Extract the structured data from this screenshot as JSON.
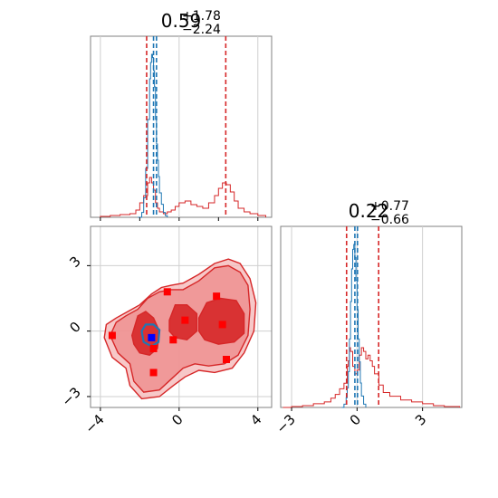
{
  "chart_data": [
    {
      "panel": "hist-param-1",
      "type": "area",
      "title": {
        "value": "0.59",
        "upper": "+1.78",
        "lower": "−2.24"
      },
      "xlim": [
        -4.5,
        4.7
      ],
      "grid": true,
      "series": [
        {
          "color": "#d62728",
          "x": [
            -4.0,
            -3.5,
            -3.0,
            -2.5,
            -2.2,
            -2.0,
            -1.8,
            -1.6,
            -1.5,
            -1.4,
            -1.3,
            -1.2,
            -1.1,
            -1.0,
            -0.8,
            -0.6,
            -0.4,
            -0.2,
            0.0,
            0.3,
            0.6,
            0.9,
            1.2,
            1.5,
            1.8,
            2.0,
            2.2,
            2.4,
            2.6,
            2.8,
            3.0,
            3.3,
            3.6,
            4.0,
            4.4
          ],
          "y": [
            0.005,
            0.01,
            0.015,
            0.02,
            0.04,
            0.08,
            0.12,
            0.19,
            0.22,
            0.19,
            0.15,
            0.08,
            0.05,
            0.03,
            0.02,
            0.03,
            0.04,
            0.06,
            0.08,
            0.09,
            0.07,
            0.06,
            0.05,
            0.08,
            0.12,
            0.16,
            0.19,
            0.18,
            0.14,
            0.09,
            0.05,
            0.03,
            0.02,
            0.01,
            0.0
          ]
        },
        {
          "color": "#1f77b4",
          "x": [
            -2.1,
            -1.9,
            -1.8,
            -1.7,
            -1.6,
            -1.5,
            -1.45,
            -1.4,
            -1.35,
            -1.3,
            -1.25,
            -1.2,
            -1.15,
            -1.1,
            -1.05,
            -1.0,
            -0.9,
            -0.8,
            -0.7,
            -0.6
          ],
          "y": [
            0.0,
            0.03,
            0.12,
            0.3,
            0.6,
            0.85,
            0.95,
            1.0,
            0.98,
            0.9,
            0.8,
            0.6,
            0.45,
            0.35,
            0.25,
            0.15,
            0.08,
            0.03,
            0.01,
            0.0
          ]
        }
      ],
      "reference_lines": [
        {
          "x": -1.65,
          "color": "#d62728"
        },
        {
          "x": 2.37,
          "color": "#d62728"
        },
        {
          "x": -1.3,
          "color": "#1f77b4"
        },
        {
          "x": -1.15,
          "color": "#1f77b4"
        }
      ]
    },
    {
      "panel": "hist-param-2",
      "type": "area",
      "title": {
        "value": "0.22",
        "upper": "+0.77",
        "lower": "−0.66"
      },
      "xlim": [
        -3.5,
        4.8
      ],
      "x_ticks": [
        "−3",
        "0",
        "3"
      ],
      "x_tick_values": [
        -3,
        0,
        3
      ],
      "grid": true,
      "series": [
        {
          "color": "#d62728",
          "x": [
            -3.4,
            -3.0,
            -2.5,
            -2.0,
            -1.5,
            -1.2,
            -1.0,
            -0.8,
            -0.6,
            -0.45,
            -0.4,
            -0.35,
            -0.3,
            -0.2,
            -0.1,
            0.0,
            0.1,
            0.2,
            0.3,
            0.4,
            0.5,
            0.6,
            0.7,
            0.8,
            1.0,
            1.2,
            1.5,
            2.0,
            2.5,
            3.0,
            3.5,
            4.0,
            4.7
          ],
          "y": [
            0.0,
            0.005,
            0.01,
            0.02,
            0.03,
            0.05,
            0.07,
            0.1,
            0.13,
            0.22,
            0.25,
            0.32,
            0.3,
            0.22,
            0.18,
            0.2,
            0.28,
            0.32,
            0.3,
            0.26,
            0.28,
            0.25,
            0.22,
            0.18,
            0.12,
            0.08,
            0.06,
            0.04,
            0.03,
            0.02,
            0.01,
            0.005,
            0.0
          ]
        },
        {
          "color": "#1f77b4",
          "x": [
            -0.7,
            -0.6,
            -0.5,
            -0.45,
            -0.4,
            -0.35,
            -0.3,
            -0.25,
            -0.2,
            -0.15,
            -0.1,
            -0.05,
            0.0,
            0.05,
            0.1,
            0.15,
            0.2,
            0.3,
            0.4
          ],
          "y": [
            0.0,
            0.02,
            0.06,
            0.12,
            0.22,
            0.42,
            0.65,
            0.85,
            0.97,
            1.0,
            0.92,
            0.78,
            0.6,
            0.42,
            0.28,
            0.15,
            0.07,
            0.02,
            0.0
          ]
        }
      ],
      "reference_lines": [
        {
          "x": -0.48,
          "color": "#d62728"
        },
        {
          "x": 0.99,
          "color": "#d62728"
        },
        {
          "x": -0.1,
          "color": "#1f77b4"
        },
        {
          "x": 0.02,
          "color": "#1f77b4"
        }
      ]
    },
    {
      "panel": "joint-contour",
      "type": "scatter",
      "xlim": [
        -4.5,
        4.7
      ],
      "ylim": [
        -3.5,
        4.8
      ],
      "x_ticks": [
        "−4",
        "0",
        "4"
      ],
      "x_tick_values": [
        -4,
        0,
        4
      ],
      "y_ticks": [
        "−3",
        "0",
        "3"
      ],
      "y_tick_values": [
        -3,
        0,
        3
      ],
      "grid": true,
      "contours": [
        {
          "color": "#f4b6b6",
          "points": [
            [
              -3.8,
              -0.3
            ],
            [
              -3.7,
              0.3
            ],
            [
              -3.2,
              0.6
            ],
            [
              -2.6,
              0.9
            ],
            [
              -2.0,
              1.2
            ],
            [
              -1.4,
              1.7
            ],
            [
              -0.9,
              2.0
            ],
            [
              -0.4,
              2.1
            ],
            [
              0.2,
              2.2
            ],
            [
              1.0,
              2.6
            ],
            [
              1.8,
              3.1
            ],
            [
              2.5,
              3.3
            ],
            [
              3.1,
              3.1
            ],
            [
              3.6,
              2.4
            ],
            [
              3.9,
              1.3
            ],
            [
              3.8,
              0.0
            ],
            [
              3.3,
              -1.0
            ],
            [
              2.7,
              -1.7
            ],
            [
              1.8,
              -1.9
            ],
            [
              1.0,
              -1.8
            ],
            [
              0.3,
              -2.1
            ],
            [
              -0.3,
              -2.5
            ],
            [
              -1.0,
              -3.0
            ],
            [
              -1.9,
              -3.1
            ],
            [
              -2.5,
              -2.5
            ],
            [
              -2.7,
              -1.7
            ],
            [
              -3.4,
              -1.2
            ]
          ]
        },
        {
          "color": "#ee8a8a",
          "points": [
            [
              -3.5,
              -0.2
            ],
            [
              -3.2,
              0.4
            ],
            [
              -2.7,
              0.7
            ],
            [
              -2.1,
              1.0
            ],
            [
              -1.6,
              1.5
            ],
            [
              -1.0,
              1.8
            ],
            [
              -0.4,
              1.9
            ],
            [
              0.2,
              1.9
            ],
            [
              1.0,
              2.3
            ],
            [
              1.8,
              2.9
            ],
            [
              2.5,
              3.0
            ],
            [
              3.1,
              2.7
            ],
            [
              3.5,
              2.1
            ],
            [
              3.6,
              1.0
            ],
            [
              3.5,
              -0.2
            ],
            [
              3.0,
              -1.1
            ],
            [
              2.3,
              -1.5
            ],
            [
              1.5,
              -1.6
            ],
            [
              0.8,
              -1.5
            ],
            [
              0.2,
              -1.7
            ],
            [
              -0.4,
              -2.2
            ],
            [
              -1.0,
              -2.7
            ],
            [
              -1.8,
              -2.8
            ],
            [
              -2.3,
              -2.3
            ],
            [
              -2.5,
              -1.5
            ],
            [
              -3.1,
              -1.0
            ]
          ]
        },
        {
          "color": "#d62728",
          "points": [
            [
              -2.4,
              -0.2
            ],
            [
              -2.1,
              0.7
            ],
            [
              -1.7,
              0.9
            ],
            [
              -1.3,
              0.6
            ],
            [
              -1.0,
              0.0
            ],
            [
              -1.1,
              -0.8
            ],
            [
              -1.5,
              -1.1
            ],
            [
              -2.0,
              -1.0
            ],
            [
              -2.3,
              -0.6
            ]
          ]
        },
        {
          "color": "#d62728",
          "points": [
            [
              -0.5,
              0.5
            ],
            [
              -0.2,
              1.2
            ],
            [
              0.4,
              1.2
            ],
            [
              0.9,
              0.8
            ],
            [
              0.9,
              0.0
            ],
            [
              0.4,
              -0.4
            ],
            [
              -0.2,
              -0.3
            ],
            [
              -0.5,
              0.0
            ]
          ]
        },
        {
          "color": "#d62728",
          "points": [
            [
              1.0,
              0.6
            ],
            [
              1.4,
              1.3
            ],
            [
              2.1,
              1.5
            ],
            [
              2.9,
              1.4
            ],
            [
              3.3,
              0.8
            ],
            [
              3.3,
              -0.1
            ],
            [
              2.8,
              -0.5
            ],
            [
              2.0,
              -0.6
            ],
            [
              1.3,
              -0.4
            ],
            [
              1.0,
              0.0
            ]
          ]
        }
      ],
      "blue_contour": {
        "color": "#1f77b4",
        "points": [
          [
            -1.9,
            0.0
          ],
          [
            -1.7,
            0.3
          ],
          [
            -1.3,
            0.3
          ],
          [
            -1.0,
            0.05
          ],
          [
            -1.05,
            -0.5
          ],
          [
            -1.4,
            -0.7
          ],
          [
            -1.8,
            -0.5
          ]
        ]
      },
      "markers_red": [
        [
          -3.4,
          -0.2
        ],
        [
          -1.3,
          -0.8
        ],
        [
          -1.3,
          -1.9
        ],
        [
          -0.6,
          1.8
        ],
        [
          -0.3,
          -0.4
        ],
        [
          0.3,
          0.5
        ],
        [
          1.9,
          1.6
        ],
        [
          2.2,
          0.3
        ],
        [
          2.4,
          -1.3
        ]
      ],
      "markers_blue": [
        [
          -1.4,
          -0.3
        ]
      ]
    }
  ]
}
